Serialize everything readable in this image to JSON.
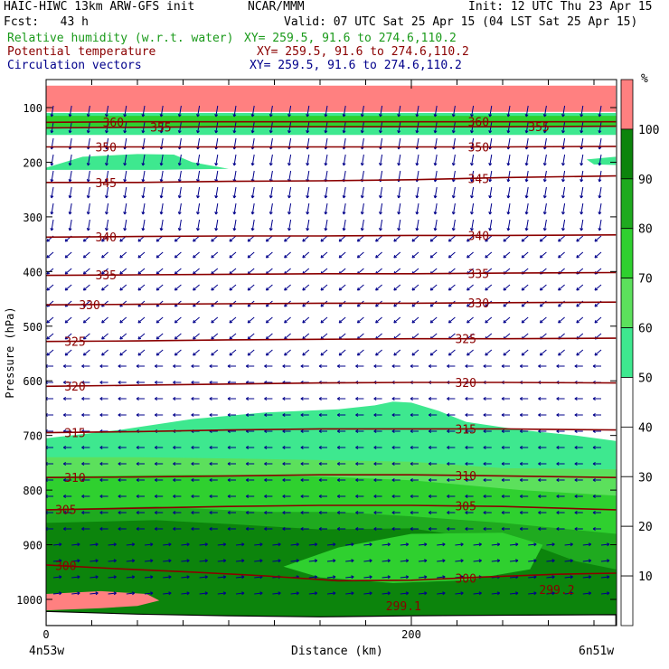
{
  "header": {
    "model": "HAIC-HIWC 13km ARW-GFS init",
    "org": "NCAR/MMM",
    "init": "Init: 12 UTC Thu 23 Apr 15",
    "fcst": "Fcst:   43 h",
    "valid": "Valid: 07 UTC Sat 25 Apr 15 (04 LST Sat 25 Apr 15)",
    "fields": [
      {
        "label": "Relative humidity (w.r.t. water)",
        "xy": "XY= 259.5, 91.6 to 274.6,110.2",
        "color": "#1a9a1a"
      },
      {
        "label": "Potential temperature",
        "xy": "XY= 259.5, 91.6 to 274.6,110.2",
        "color": "#8b0000"
      },
      {
        "label": "Circulation vectors",
        "xy": "XY= 259.5, 91.6 to 274.6,110.2",
        "color": "#00008b"
      }
    ]
  },
  "chart_data": {
    "type": "cross-section",
    "xlabel": "Distance (km)",
    "ylabel": "Pressure (hPa)",
    "x_ticks": [
      0,
      200
    ],
    "x_minor_step_km": 25,
    "x_range_km": [
      0,
      312
    ],
    "y_ticks": [
      100,
      200,
      300,
      400,
      500,
      600,
      700,
      800,
      900,
      1000
    ],
    "y_range_hpa": [
      60,
      1050
    ],
    "x_endpoints": {
      "left": "4n53w",
      "right": "6n51w"
    },
    "colorbar": {
      "unit": "%",
      "levels": [
        10,
        20,
        30,
        40,
        50,
        60,
        70,
        80,
        90,
        100
      ],
      "colors": {
        "50-60": "#3ee88f",
        "60-70": "#5ce05c",
        "70-80": "#2fd02f",
        "80-90": "#1faa1f",
        "90-100": "#0c840c",
        ">100": "#ff8080"
      }
    },
    "theta_contours": [
      {
        "value": 300,
        "x_km": [
          0,
          40,
          80,
          120,
          160,
          200,
          240,
          280,
          312
        ],
        "p_hpa": [
          937,
          944,
          950,
          957,
          966,
          965,
          959,
          954,
          952
        ],
        "labels_km": [
          5,
          224
        ]
      },
      {
        "value": 305,
        "x_km": [
          0,
          50,
          100,
          150,
          200,
          250,
          312
        ],
        "p_hpa": [
          836,
          833,
          830,
          828,
          828,
          830,
          836
        ],
        "labels_km": [
          5,
          224
        ]
      },
      {
        "value": 310,
        "x_km": [
          0,
          50,
          100,
          150,
          200,
          250,
          312
        ],
        "p_hpa": [
          777,
          776,
          774,
          772,
          772,
          774,
          777
        ],
        "labels_km": [
          10,
          224
        ]
      },
      {
        "value": 315,
        "x_km": [
          0,
          50,
          100,
          150,
          200,
          250,
          312
        ],
        "p_hpa": [
          695,
          693,
          690,
          688,
          688,
          688,
          690
        ],
        "labels_km": [
          10,
          224
        ]
      },
      {
        "value": 320,
        "x_km": [
          0,
          50,
          100,
          150,
          200,
          250,
          312
        ],
        "p_hpa": [
          610,
          608,
          606,
          604,
          603,
          603,
          604
        ],
        "labels_km": [
          10,
          224
        ]
      },
      {
        "value": 325,
        "x_km": [
          0,
          50,
          100,
          150,
          200,
          250,
          312
        ],
        "p_hpa": [
          528,
          527,
          525,
          524,
          523,
          523,
          522
        ],
        "labels_km": [
          10,
          224
        ]
      },
      {
        "value": 330,
        "x_km": [
          0,
          50,
          100,
          150,
          200,
          250,
          312
        ],
        "p_hpa": [
          461,
          460,
          459,
          458,
          458,
          457,
          456
        ],
        "labels_km": [
          18,
          231
        ]
      },
      {
        "value": 335,
        "x_km": [
          0,
          50,
          100,
          150,
          200,
          250,
          312
        ],
        "p_hpa": [
          407,
          406,
          405,
          404,
          404,
          403,
          402
        ],
        "labels_km": [
          27,
          231
        ]
      },
      {
        "value": 340,
        "x_km": [
          0,
          50,
          100,
          150,
          200,
          250,
          312
        ],
        "p_hpa": [
          337,
          336,
          335,
          335,
          334,
          334,
          333
        ],
        "labels_km": [
          27,
          231
        ]
      },
      {
        "value": 345,
        "x_km": [
          0,
          50,
          100,
          150,
          200,
          250,
          312
        ],
        "p_hpa": [
          237,
          237,
          235,
          234,
          232,
          228,
          225
        ],
        "labels_km": [
          27,
          231
        ]
      },
      {
        "value": 350,
        "x_km": [
          0,
          50,
          100,
          150,
          200,
          250,
          312
        ],
        "p_hpa": [
          172,
          172,
          172,
          172,
          172,
          172,
          171
        ],
        "labels_km": [
          27,
          231
        ]
      },
      {
        "value": 355,
        "x_km": [
          0,
          50,
          100,
          150,
          200,
          250,
          312
        ],
        "p_hpa": [
          137,
          136,
          135,
          135,
          135,
          135,
          134
        ],
        "labels_km": [
          57,
          264
        ]
      },
      {
        "value": 360,
        "x_km": [
          0,
          50,
          100,
          150,
          200,
          250,
          312
        ],
        "p_hpa": [
          127,
          126,
          126,
          126,
          126,
          126,
          126
        ],
        "labels_km": [
          31,
          231
        ]
      }
    ],
    "extra_labels": [
      {
        "text": "299.1",
        "x_km": 186,
        "p_hpa": 1020
      },
      {
        "text": "299.2",
        "x_km": 270,
        "p_hpa": 990
      }
    ],
    "rh_regions": [
      {
        "range": ">100",
        "poly": [
          [
            0,
            60
          ],
          [
            312,
            60
          ],
          [
            312,
            108
          ],
          [
            0,
            108
          ]
        ]
      },
      {
        "range": "50-60",
        "poly": [
          [
            0,
            110
          ],
          [
            312,
            110
          ],
          [
            312,
            150
          ],
          [
            0,
            150
          ]
        ]
      },
      {
        "range": "70-80",
        "poly": [
          [
            0,
            115
          ],
          [
            312,
            115
          ],
          [
            312,
            135
          ],
          [
            0,
            135
          ]
        ]
      },
      {
        "range": "50-60",
        "poly": [
          [
            0,
            210
          ],
          [
            20,
            190
          ],
          [
            50,
            185
          ],
          [
            70,
            186
          ],
          [
            80,
            200
          ],
          [
            100,
            212
          ],
          [
            60,
            214
          ],
          [
            0,
            214
          ]
        ]
      },
      {
        "range": "50-60",
        "poly": [
          [
            296,
            195
          ],
          [
            312,
            190
          ],
          [
            312,
            205
          ],
          [
            300,
            204
          ]
        ]
      },
      {
        "range": "50-60",
        "poly": [
          [
            0,
            705
          ],
          [
            40,
            690
          ],
          [
            80,
            670
          ],
          [
            120,
            658
          ],
          [
            160,
            652
          ],
          [
            180,
            645
          ],
          [
            190,
            638
          ],
          [
            200,
            640
          ],
          [
            215,
            655
          ],
          [
            230,
            675
          ],
          [
            260,
            690
          ],
          [
            290,
            700
          ],
          [
            312,
            710
          ],
          [
            312,
            1050
          ],
          [
            0,
            1050
          ]
        ]
      },
      {
        "range": "60-70",
        "poly": [
          [
            0,
            740
          ],
          [
            50,
            740
          ],
          [
            100,
            742
          ],
          [
            150,
            745
          ],
          [
            200,
            748
          ],
          [
            250,
            760
          ],
          [
            312,
            762
          ],
          [
            312,
            1050
          ],
          [
            0,
            1050
          ]
        ]
      },
      {
        "range": "70-80",
        "poly": [
          [
            0,
            775
          ],
          [
            80,
            772
          ],
          [
            150,
            775
          ],
          [
            200,
            782
          ],
          [
            260,
            800
          ],
          [
            312,
            810
          ],
          [
            312,
            1050
          ],
          [
            0,
            1050
          ]
        ]
      },
      {
        "range": "80-90",
        "poly": [
          [
            0,
            835
          ],
          [
            60,
            830
          ],
          [
            120,
            840
          ],
          [
            160,
            840
          ],
          [
            200,
            848
          ],
          [
            250,
            860
          ],
          [
            312,
            880
          ],
          [
            312,
            1050
          ],
          [
            0,
            1050
          ]
        ]
      },
      {
        "range": "90-100",
        "poly": [
          [
            0,
            860
          ],
          [
            60,
            855
          ],
          [
            100,
            862
          ],
          [
            150,
            872
          ],
          [
            200,
            870
          ],
          [
            240,
            890
          ],
          [
            270,
            905
          ],
          [
            290,
            930
          ],
          [
            312,
            945
          ],
          [
            312,
            1050
          ],
          [
            0,
            1050
          ]
        ]
      },
      {
        "range": "70-80",
        "poly": [
          [
            130,
            940
          ],
          [
            160,
            905
          ],
          [
            200,
            880
          ],
          [
            250,
            878
          ],
          [
            272,
            900
          ],
          [
            265,
            945
          ],
          [
            230,
            965
          ],
          [
            190,
            970
          ],
          [
            150,
            960
          ]
        ]
      },
      {
        "range": ">100",
        "poly": [
          [
            0,
            990
          ],
          [
            30,
            985
          ],
          [
            55,
            990
          ],
          [
            62,
            1002
          ],
          [
            50,
            1012
          ],
          [
            30,
            1016
          ],
          [
            0,
            1020
          ]
        ]
      }
    ],
    "terrain_hpa": {
      "x_km": [
        0,
        50,
        100,
        150,
        200,
        250,
        312
      ],
      "p_hpa": [
        1022,
        1027,
        1030,
        1032,
        1030,
        1029,
        1028
      ]
    }
  },
  "colors": {
    "theta": "#8b0000",
    "vectors": "#00008b",
    "text": "#000000",
    "title": "#000000"
  }
}
